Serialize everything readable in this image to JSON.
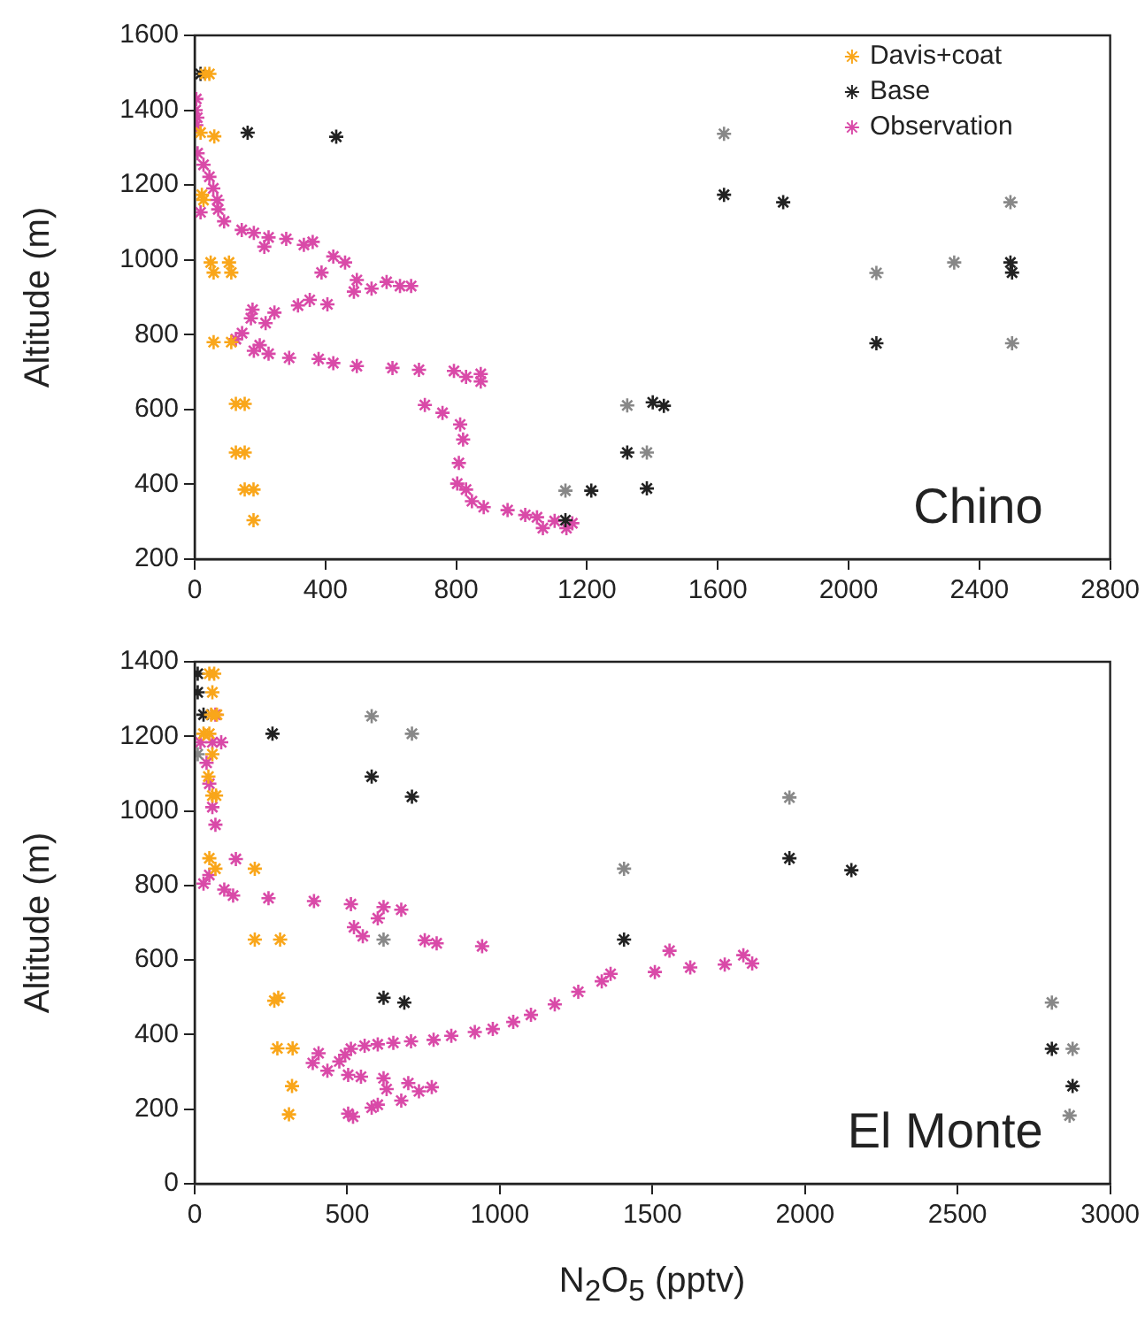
{
  "chart_data": [
    {
      "type": "scatter",
      "ylabel": "Altitude (m)",
      "xlim": [
        0,
        2800
      ],
      "xticks": [
        0,
        400,
        800,
        1200,
        1600,
        2000,
        2400,
        2800
      ],
      "ylim": [
        200,
        1600
      ],
      "yticks": [
        200,
        400,
        600,
        800,
        1000,
        1200,
        1400,
        1600
      ],
      "grid": false,
      "legend": "top right",
      "marker": "cross",
      "annotations": [
        "Chino"
      ],
      "series": [
        {
          "name": "Davis+coat",
          "color": "#f9a61a",
          "x": [
            32,
            45,
            18,
            60,
            22,
            27,
            49,
            105,
            58,
            112,
            58,
            112,
            153,
            126,
            126,
            153,
            153,
            180,
            180
          ],
          "values": [
            1497,
            1497,
            1340,
            1330,
            1174,
            1160,
            993,
            993,
            966,
            966,
            780,
            780,
            615,
            615,
            485,
            485,
            386,
            386,
            304
          ]
        },
        {
          "name": "Base",
          "color": "#222222",
          "colors": [
            "#222222",
            "#222222",
            "#222222",
            "#888888",
            "#222222",
            "#222222",
            "#888888",
            "#888888",
            "#888888",
            "#222222",
            "#222222",
            "#222222",
            "#888888",
            "#888888",
            "#222222",
            "#222222",
            "#222222",
            "#888888",
            "#888888",
            "#222222",
            "#222222",
            "#222222"
          ],
          "x": [
            18,
            162,
            433,
            1619,
            1619,
            1800,
            2495,
            2085,
            2323,
            2495,
            2500,
            2085,
            2500,
            1323,
            1401,
            1435,
            1323,
            1383,
            1134,
            1213,
            1383,
            1134
          ],
          "values": [
            1497,
            1340,
            1329,
            1337,
            1174,
            1154,
            1154,
            965,
            993,
            993,
            966,
            777,
            777,
            611,
            619,
            610,
            485,
            485,
            383,
            383,
            389,
            304
          ]
        },
        {
          "name": "Observation",
          "color": "#d94aa8",
          "x": [
            5,
            3,
            8,
            5,
            9,
            27,
            45,
            57,
            69,
            18,
            72,
            90,
            144,
            181,
            226,
            280,
            334,
            361,
            213,
            424,
            460,
            388,
            496,
            487,
            541,
            587,
            628,
            662,
            352,
            316,
            406,
            244,
            177,
            217,
            172,
            145,
            126,
            199,
            226,
            181,
            289,
            379,
            424,
            496,
            605,
            686,
            793,
            830,
            875,
            875,
            704,
            758,
            812,
            821,
            808,
            803,
            830,
            848,
            884,
            957,
            1011,
            1047,
            1101,
            1065,
            1137,
            1155
          ],
          "values": [
            1430,
            1400,
            1380,
            1360,
            1285,
            1254,
            1222,
            1191,
            1160,
            1127,
            1135,
            1103,
            1080,
            1072,
            1060,
            1056,
            1040,
            1048,
            1035,
            1009,
            993,
            966,
            946,
            915,
            923,
            941,
            930,
            930,
            893,
            878,
            881,
            859,
            867,
            831,
            844,
            804,
            788,
            772,
            749,
            757,
            738,
            735,
            724,
            716,
            711,
            706,
            703,
            687,
            695,
            675,
            612,
            591,
            560,
            520,
            457,
            402,
            386,
            355,
            339,
            331,
            318,
            312,
            302,
            283,
            283,
            296
          ]
        }
      ]
    },
    {
      "type": "scatter",
      "xlabel": "N$_{2}$O$_{5}$ (pptv)",
      "ylabel": "Altitude (m)",
      "xlim": [
        0,
        3000
      ],
      "xticks": [
        0,
        500,
        1000,
        1500,
        2000,
        2500,
        3000
      ],
      "ylim": [
        0,
        1400
      ],
      "yticks": [
        0,
        200,
        400,
        600,
        800,
        1000,
        1200,
        1400
      ],
      "grid": false,
      "marker": "cross",
      "annotations": [
        "El Monte"
      ],
      "series": [
        {
          "color": "#f9a61a",
          "x": [
            48,
            64,
            58,
            54,
            73,
            29,
            48,
            58,
            45,
            58,
            70,
            48,
            68,
            197,
            197,
            280,
            261,
            274,
            271,
            321,
            319,
            309
          ],
          "values": [
            1368,
            1368,
            1318,
            1258,
            1258,
            1207,
            1207,
            1152,
            1092,
            1041,
            1041,
            873,
            845,
            845,
            655,
            655,
            491,
            499,
            363,
            363,
            262,
            186
          ]
        },
        {
          "colors": [
            "#222222",
            "#222222",
            "#222222",
            "#888888",
            "#222222",
            "#888888",
            "#888888",
            "#222222",
            "#222222",
            "#888888",
            "#222222",
            "#888888",
            "#222222",
            "#222222",
            "#888888",
            "#222222",
            "#222222",
            "#888888",
            "#222222",
            "#888888",
            "#222222",
            "#888888"
          ],
          "x": [
            10,
            10,
            29,
            10,
            255,
            580,
            712,
            580,
            712,
            1407,
            1407,
            619,
            619,
            687,
            1949,
            1949,
            2152,
            2809,
            2809,
            2877,
            2877,
            2867
          ],
          "values": [
            1368,
            1318,
            1258,
            1152,
            1207,
            1254,
            1207,
            1092,
            1038,
            845,
            655,
            655,
            499,
            486,
            1036,
            873,
            841,
            486,
            362,
            362,
            262,
            183
          ]
        },
        {
          "color": "#d94aa8",
          "x": [
            68,
            19,
            58,
            87,
            39,
            48,
            58,
            68,
            135,
            48,
            29,
            97,
            126,
            242,
            391,
            512,
            677,
            619,
            600,
            522,
            551,
            754,
            793,
            942,
            1556,
            1508,
            1624,
            1737,
            1798,
            1827,
            1363,
            1334,
            1257,
            1180,
            1102,
            1044,
            977,
            918,
            841,
            783,
            709,
            651,
            600,
            557,
            512,
            493,
            406,
            474,
            387,
            435,
            503,
            545,
            619,
            700,
            777,
            735,
            677,
            629,
            600,
            580,
            503,
            519
          ],
          "values": [
            1258,
            1184,
            1184,
            1184,
            1129,
            1073,
            1010,
            963,
            871,
            828,
            805,
            789,
            773,
            766,
            758,
            750,
            735,
            742,
            712,
            688,
            664,
            653,
            645,
            637,
            625,
            568,
            580,
            588,
            613,
            591,
            563,
            543,
            515,
            481,
            453,
            434,
            415,
            407,
            397,
            386,
            382,
            378,
            374,
            370,
            362,
            346,
            350,
            328,
            324,
            303,
            292,
            287,
            283,
            270,
            259,
            248,
            223,
            254,
            212,
            204,
            188,
            180
          ]
        }
      ]
    }
  ]
}
